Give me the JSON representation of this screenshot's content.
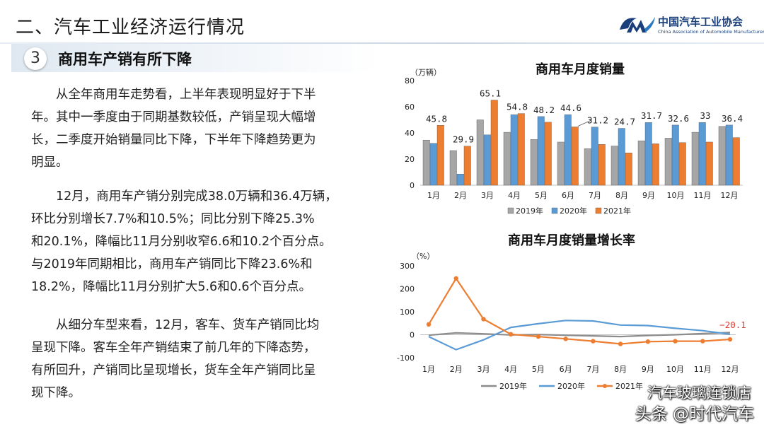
{
  "header": {
    "title": "二、汽车工业经济运行情况",
    "logo_cn": "中国汽车工业协会",
    "logo_en": "China Association of Automobile Manufacturers"
  },
  "section": {
    "number": "3",
    "title": "商用车产销有所下降"
  },
  "paragraphs": {
    "p1": [
      "从全年商用车走势看，上半年表现明显好于下半",
      "年。其中一季度由于同期基数较低，产销呈现大幅增",
      "长，二季度开始销量同比下降，下半年下降趋势更为",
      "明显。"
    ],
    "p2": [
      "12月，商用车产销分别完成38.0万辆和36.4万辆，",
      "环比分别增长7.7%和10.5%；同比分别下降25.3%",
      "和20.1%，降幅比11月分别收窄6.6和10.2个百分点。",
      "与2019年同期相比，商用车产销同比下降23.6%和",
      "18.2%，降幅比11月分别扩大5.6和0.6个百分点。"
    ],
    "p3": [
      "从细分车型来看，12月，客车、货车产销同比均",
      "呈现下降。客车全年产销结束了前几年的下降态势，",
      "有所回升，产销同比呈现增长，货车全年产销同比呈",
      "现下降。"
    ]
  },
  "watermark": {
    "line1": "汽车玻璃连锁店",
    "line2": "头条 @时代汽车"
  },
  "chart_data": [
    {
      "type": "bar",
      "title": "商用车月度销量",
      "ylabel": "（万辆）",
      "ylim": [
        0,
        80
      ],
      "yticks": [
        0,
        20,
        40,
        60,
        80
      ],
      "categories": [
        "1月",
        "2月",
        "3月",
        "4月",
        "5月",
        "6月",
        "7月",
        "8月",
        "9月",
        "10月",
        "11月",
        "12月"
      ],
      "series": [
        {
          "name": "2019年",
          "color": "#a6a6a6",
          "values": [
            34.5,
            26.5,
            50,
            40.5,
            35,
            33,
            28,
            30,
            34,
            36,
            40.5,
            45
          ]
        },
        {
          "name": "2020年",
          "color": "#5b9bd5",
          "values": [
            32,
            8.5,
            38.5,
            54,
            52.5,
            54,
            44.5,
            43.5,
            48,
            46,
            48,
            46
          ]
        },
        {
          "name": "2021年",
          "color": "#ed7d31",
          "values": [
            45.8,
            29.9,
            65.1,
            54.8,
            48.2,
            44.6,
            31.2,
            24.7,
            31.7,
            32.6,
            33,
            36.4
          ]
        }
      ],
      "data_labels": [
        "45.8",
        "29.9",
        "65.1",
        "54.8",
        "48.2",
        "44.6",
        "31.2",
        "24.7",
        "31.7",
        "32.6",
        "33",
        "36.4"
      ],
      "legend": "bottom"
    },
    {
      "type": "line",
      "title": "商用车月度销量增长率",
      "ylabel": "（%）",
      "ylim": [
        -100,
        300
      ],
      "yticks": [
        -100,
        0,
        100,
        200,
        300
      ],
      "categories": [
        "1月",
        "2月",
        "3月",
        "4月",
        "5月",
        "6月",
        "7月",
        "8月",
        "9月",
        "10月",
        "11月",
        "12月"
      ],
      "series": [
        {
          "name": "2019年",
          "color": "#8c8c8c",
          "values": [
            -2,
            8,
            4,
            -1,
            1,
            -2,
            -5,
            -8,
            -3,
            0,
            5,
            10
          ]
        },
        {
          "name": "2020年",
          "color": "#5b9bd5",
          "values": [
            -8,
            -65,
            -22,
            32,
            48,
            62,
            60,
            42,
            40,
            28,
            18,
            2
          ]
        },
        {
          "name": "2021年",
          "color": "#ed7d31",
          "values": [
            45,
            245,
            68,
            2,
            -8,
            -18,
            -28,
            -40,
            -30,
            -28,
            -28,
            -20.1
          ]
        }
      ],
      "annotation": "−20.1",
      "legend": "bottom"
    }
  ]
}
